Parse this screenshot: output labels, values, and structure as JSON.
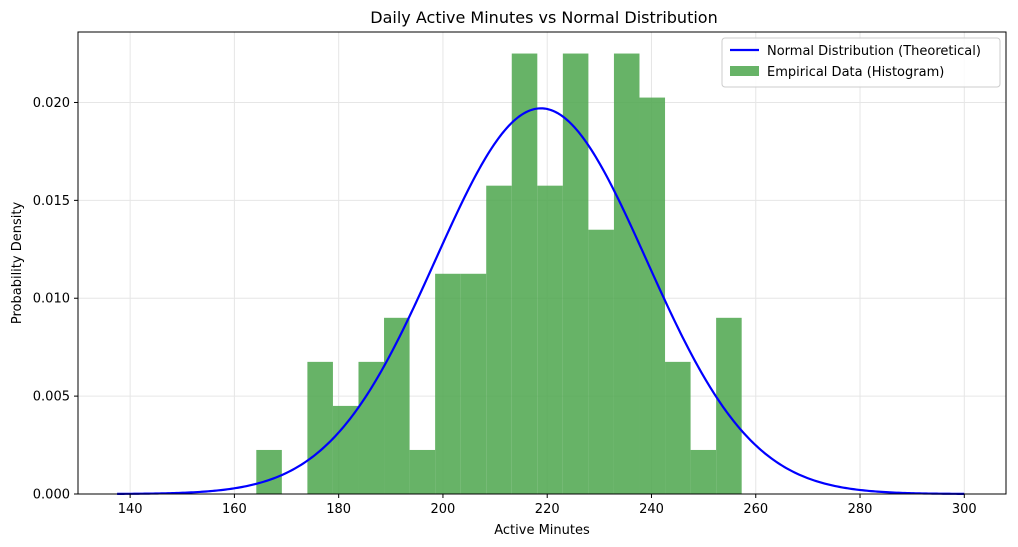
{
  "chart_data": {
    "type": "bar",
    "title": "Daily Active Minutes vs Normal Distribution",
    "xlabel": "Active Minutes",
    "ylabel": "Probability Density",
    "xlim": [
      130,
      308
    ],
    "ylim": [
      0,
      0.0236
    ],
    "xticks": [
      140,
      160,
      180,
      200,
      220,
      240,
      260,
      280,
      300
    ],
    "yticks": [
      0.0,
      0.005,
      0.01,
      0.015,
      0.02
    ],
    "ytick_labels": [
      "0.000",
      "0.005",
      "0.010",
      "0.015",
      "0.020"
    ],
    "grid": true,
    "legend_position": "top-right",
    "colors": {
      "histogram": "#4ca64c",
      "curve": "#0000ff",
      "grid": "#e6e6e6"
    },
    "series": [
      {
        "name": "Normal Distribution (Theoretical)",
        "kind": "line",
        "mean": 218.8,
        "std": 20.25,
        "x_range": [
          137.5,
          300
        ]
      },
      {
        "name": "Empirical Data (Histogram)",
        "kind": "histogram",
        "bins": [
          {
            "x0": 164.2,
            "x1": 169.1,
            "value": 0.00225
          },
          {
            "x0": 169.1,
            "x1": 174.0,
            "value": 0.0
          },
          {
            "x0": 174.0,
            "x1": 178.9,
            "value": 0.00675
          },
          {
            "x0": 178.9,
            "x1": 183.8,
            "value": 0.0045
          },
          {
            "x0": 183.8,
            "x1": 188.7,
            "value": 0.00675
          },
          {
            "x0": 188.7,
            "x1": 193.6,
            "value": 0.009
          },
          {
            "x0": 193.6,
            "x1": 198.5,
            "value": 0.00225
          },
          {
            "x0": 198.5,
            "x1": 203.4,
            "value": 0.01125
          },
          {
            "x0": 203.4,
            "x1": 208.3,
            "value": 0.01125
          },
          {
            "x0": 208.3,
            "x1": 213.2,
            "value": 0.01575
          },
          {
            "x0": 213.2,
            "x1": 218.1,
            "value": 0.0225
          },
          {
            "x0": 218.1,
            "x1": 223.0,
            "value": 0.01575
          },
          {
            "x0": 223.0,
            "x1": 227.9,
            "value": 0.0225
          },
          {
            "x0": 227.9,
            "x1": 232.8,
            "value": 0.0135
          },
          {
            "x0": 232.8,
            "x1": 237.7,
            "value": 0.0225
          },
          {
            "x0": 237.7,
            "x1": 242.6,
            "value": 0.02025
          },
          {
            "x0": 242.6,
            "x1": 247.5,
            "value": 0.00675
          },
          {
            "x0": 247.5,
            "x1": 252.4,
            "value": 0.00225
          },
          {
            "x0": 252.4,
            "x1": 257.3,
            "value": 0.009
          }
        ]
      }
    ]
  }
}
